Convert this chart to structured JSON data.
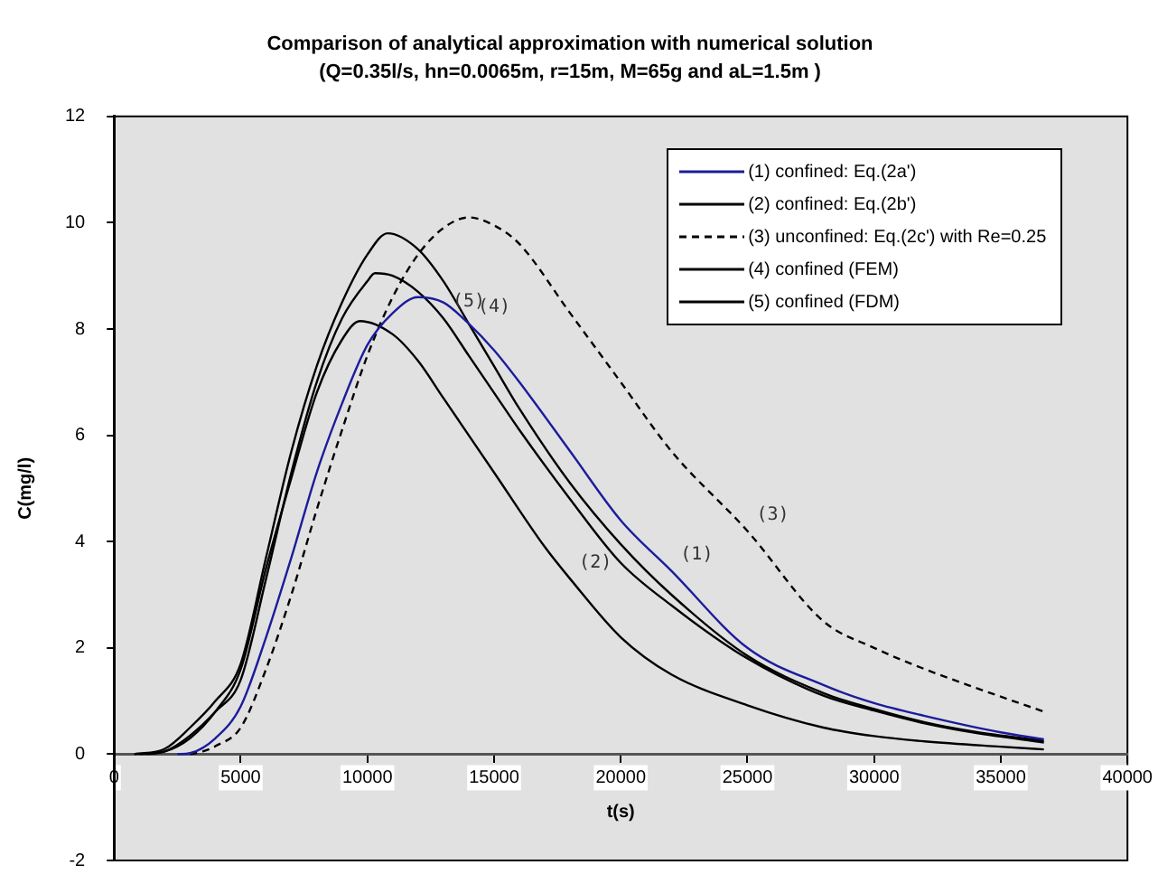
{
  "chart_data": {
    "type": "line",
    "title": "Comparison of analytical approximation with numerical solution",
    "subtitle": "(Q=0.35l/s, hn=0.0065m, r=15m, M=65g and aL=1.5m )",
    "xlabel": "t(s)",
    "ylabel": "C(mg/l)",
    "xlim": [
      0,
      40000
    ],
    "xticks": [
      0,
      5000,
      10000,
      15000,
      20000,
      25000,
      30000,
      35000,
      40000
    ],
    "ylim": [
      -2,
      12
    ],
    "yticks": [
      -2,
      0,
      2,
      4,
      6,
      8,
      10,
      12
    ],
    "grid": false,
    "legend": "top right",
    "marker": "none",
    "series": [
      {
        "name": "(1) confined: Eq.(2a')",
        "color": "#1c1c9c",
        "x": [
          2500,
          3000,
          4000,
          5000,
          6000,
          7000,
          8000,
          9000,
          10000,
          11000,
          12000,
          13000,
          14000,
          15000,
          16000,
          18000,
          20000,
          22000,
          25000,
          28000,
          30000,
          32000,
          35000,
          36700
        ],
        "values": [
          0,
          0.02,
          0.3,
          0.9,
          2.2,
          3.7,
          5.3,
          6.6,
          7.7,
          8.3,
          8.6,
          8.5,
          8.1,
          7.6,
          7.0,
          5.7,
          4.4,
          3.45,
          2.0,
          1.3,
          0.96,
          0.72,
          0.41,
          0.28
        ]
      },
      {
        "name": "(2) confined: Eq.(2b')",
        "color": "#000000",
        "x": [
          1000,
          2000,
          3000,
          4000,
          5000,
          6000,
          7000,
          8000,
          9000,
          9700,
          11000,
          12000,
          13000,
          15000,
          17000,
          18000,
          20000,
          22000,
          25000,
          28000,
          30000,
          32000,
          35000,
          36700
        ],
        "values": [
          0,
          0.05,
          0.3,
          0.8,
          1.6,
          3.5,
          5.2,
          6.8,
          7.8,
          8.15,
          7.9,
          7.4,
          6.7,
          5.3,
          3.9,
          3.3,
          2.2,
          1.5,
          0.92,
          0.5,
          0.34,
          0.24,
          0.14,
          0.09
        ]
      },
      {
        "name": "(3) unconfined: Eq.(2c') with Re=0.25",
        "color": "#000000",
        "line_style": "dashed",
        "x": [
          3000,
          3500,
          4000,
          5000,
          6000,
          7000,
          8000,
          9000,
          10000,
          11000,
          12000,
          13000,
          14000,
          15000,
          16000,
          18000,
          20000,
          22000,
          25000,
          28000,
          30000,
          32000,
          34000,
          36700
        ],
        "values": [
          0,
          0.05,
          0.15,
          0.5,
          1.6,
          3.0,
          4.6,
          6.1,
          7.5,
          8.6,
          9.4,
          9.9,
          10.1,
          9.95,
          9.6,
          8.3,
          7.0,
          5.7,
          4.2,
          2.5,
          2.0,
          1.6,
          1.25,
          0.8
        ]
      },
      {
        "name": "(4) confined (FEM)",
        "color": "#000000",
        "x": [
          800,
          2000,
          3000,
          4000,
          5000,
          6000,
          7000,
          8000,
          9000,
          10000,
          10800,
          12000,
          13000,
          14000,
          15000,
          16000,
          18000,
          20000,
          22000,
          25000,
          28000,
          30000,
          32000,
          34000,
          36700
        ],
        "values": [
          0,
          0.1,
          0.5,
          1.0,
          1.7,
          3.7,
          5.7,
          7.3,
          8.5,
          9.4,
          9.8,
          9.5,
          8.9,
          8.1,
          7.3,
          6.5,
          5.1,
          3.95,
          3.0,
          1.85,
          1.15,
          0.85,
          0.6,
          0.42,
          0.25
        ]
      },
      {
        "name": "(5) confined (FDM)",
        "color": "#000000",
        "x": [
          1300,
          2000,
          3000,
          4000,
          5000,
          6000,
          7000,
          8000,
          9000,
          10000,
          10300,
          11000,
          12000,
          13000,
          14000,
          15000,
          16000,
          18000,
          20000,
          22000,
          25000,
          28000,
          30000,
          32000,
          34000,
          36700
        ],
        "values": [
          0,
          0.05,
          0.35,
          0.8,
          1.4,
          3.3,
          5.3,
          7.0,
          8.2,
          8.9,
          9.05,
          9.0,
          8.7,
          8.2,
          7.5,
          6.8,
          6.1,
          4.8,
          3.6,
          2.8,
          1.8,
          1.1,
          0.82,
          0.58,
          0.4,
          0.22
        ]
      }
    ],
    "annotations": [
      {
        "text": "(1)",
        "x": 22000,
        "y": 3.45
      },
      {
        "text": "(2)",
        "x": 18000,
        "y": 3.3
      },
      {
        "text": "(3)",
        "x": 25000,
        "y": 4.2
      },
      {
        "text": "(4)",
        "x": 14000,
        "y": 8.1
      },
      {
        "text": "(5)",
        "x": 13000,
        "y": 8.2
      }
    ]
  }
}
